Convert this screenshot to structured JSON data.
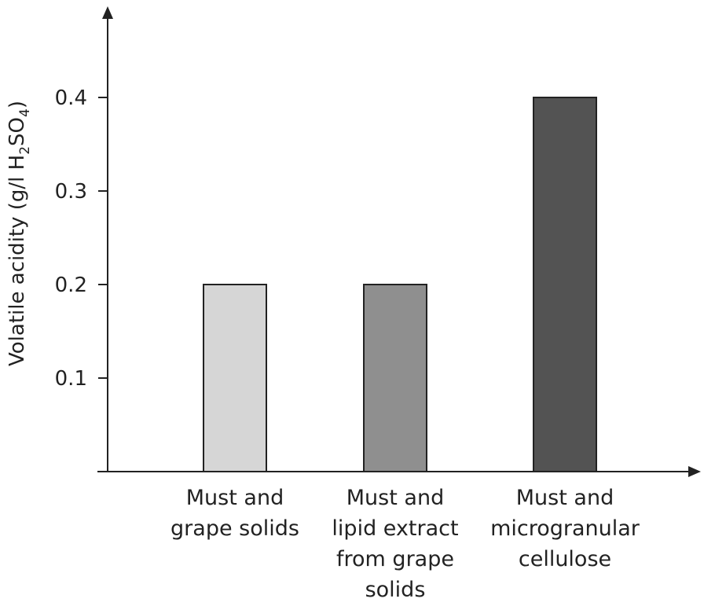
{
  "chart_data": {
    "type": "bar",
    "title": "",
    "xlabel": "",
    "ylabel": {
      "text": "Volatile acidity (g/l H",
      "sub1": "2",
      "mid": "SO",
      "sub2": "4",
      "end": ")"
    },
    "categories": [
      [
        "Must and",
        "grape solids"
      ],
      [
        "Must and",
        "lipid extract",
        "from grape",
        "solids"
      ],
      [
        "Must and",
        "microgranular",
        "cellulose"
      ]
    ],
    "values": [
      0.2,
      0.2,
      0.4
    ],
    "bar_colors": [
      "#d6d6d6",
      "#8f8f8f",
      "#535353"
    ],
    "bar_edge_color": "#222222",
    "ylim": [
      0,
      0.5
    ],
    "yticks": [
      0.1,
      0.2,
      0.3,
      0.4
    ],
    "ytick_labels": [
      "0.1",
      "0.2",
      "0.3",
      "0.4"
    ],
    "grid": false,
    "legend": "none"
  }
}
